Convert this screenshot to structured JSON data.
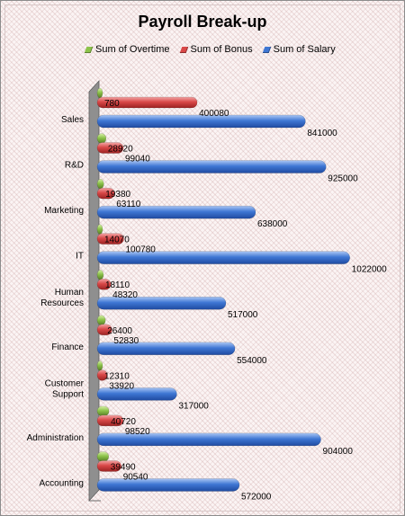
{
  "chart_data": {
    "type": "bar",
    "orientation": "horizontal",
    "title": "Payroll Break-up",
    "categories": [
      "Sales",
      "R&D",
      "Marketing",
      "IT",
      "Human Resources",
      "Finance",
      "Customer Support",
      "Administration",
      "Accounting"
    ],
    "series": [
      {
        "name": "Sum of Overtime",
        "color": "#8cc34a",
        "values": [
          780,
          28920,
          19380,
          14070,
          18110,
          26400,
          12310,
          40720,
          39490
        ]
      },
      {
        "name": "Sum of Bonus",
        "color": "#d94848",
        "values": [
          400080,
          99040,
          63110,
          100780,
          48320,
          52830,
          33920,
          98520,
          90540
        ]
      },
      {
        "name": "Sum of Salary",
        "color": "#3f77d4",
        "values": [
          841000,
          925000,
          638000,
          1022000,
          517000,
          554000,
          317000,
          904000,
          572000
        ]
      }
    ],
    "legend_position": "top",
    "grid": false,
    "xlim": [
      0,
      1100000
    ]
  }
}
